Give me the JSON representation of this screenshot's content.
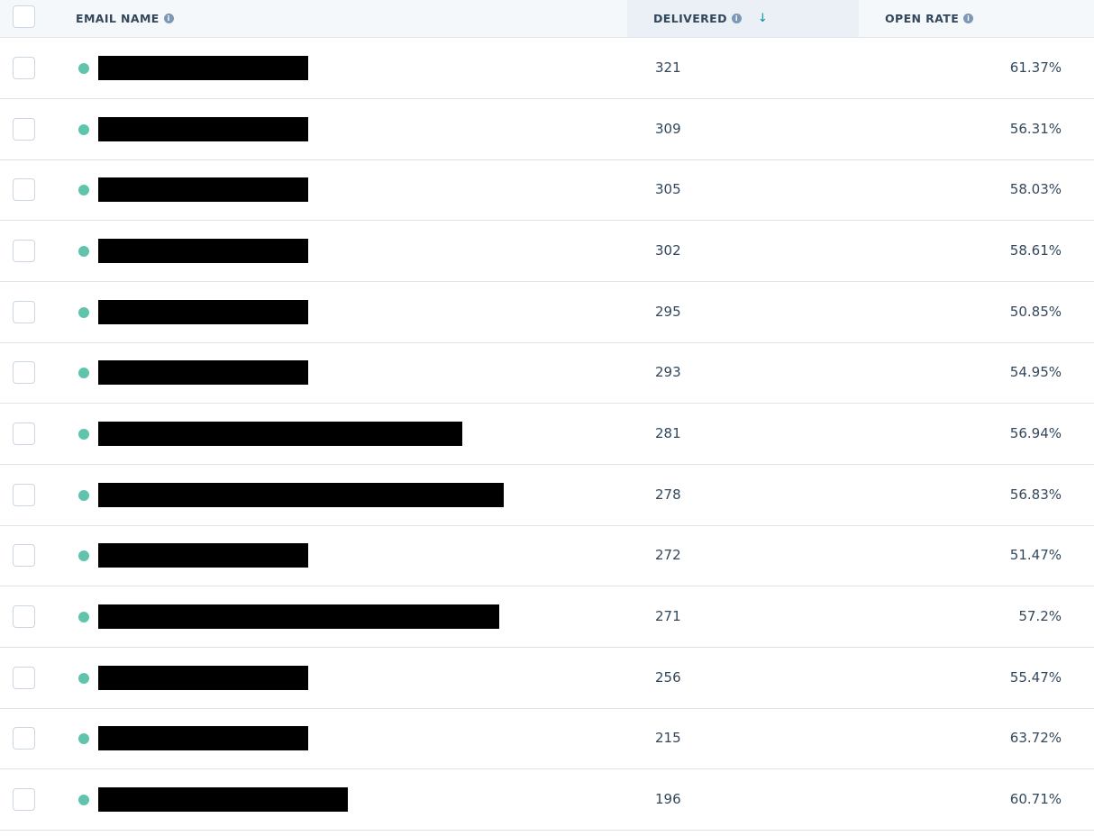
{
  "header": {
    "email_name": "EMAIL NAME",
    "delivered": "DELIVERED",
    "open_rate": "OPEN RATE",
    "sorted_column": "delivered",
    "sort_direction": "descending"
  },
  "colors": {
    "status_dot": "#5fc4ab",
    "sorted_header_bg": "#eaf0f6"
  },
  "rows": [
    {
      "delivered": "321",
      "open_rate": "61.37%",
      "name": "[redacted]"
    },
    {
      "delivered": "309",
      "open_rate": "56.31%",
      "name": "[redacted]"
    },
    {
      "delivered": "305",
      "open_rate": "58.03%",
      "name": "[redacted]"
    },
    {
      "delivered": "302",
      "open_rate": "58.61%",
      "name": "[redacted]"
    },
    {
      "delivered": "295",
      "open_rate": "50.85%",
      "name": "[redacted]"
    },
    {
      "delivered": "293",
      "open_rate": "54.95%",
      "name": "[redacted]"
    },
    {
      "delivered": "281",
      "open_rate": "56.94%",
      "name": "[redacted]"
    },
    {
      "delivered": "278",
      "open_rate": "56.83%",
      "name": "[redacted]"
    },
    {
      "delivered": "272",
      "open_rate": "51.47%",
      "name": "[redacted]"
    },
    {
      "delivered": "271",
      "open_rate": "57.2%",
      "name": "[redacted]"
    },
    {
      "delivered": "256",
      "open_rate": "55.47%",
      "name": "[redacted]"
    },
    {
      "delivered": "215",
      "open_rate": "63.72%",
      "name": "[redacted]"
    },
    {
      "delivered": "196",
      "open_rate": "60.71%",
      "name": "[redacted]"
    }
  ]
}
